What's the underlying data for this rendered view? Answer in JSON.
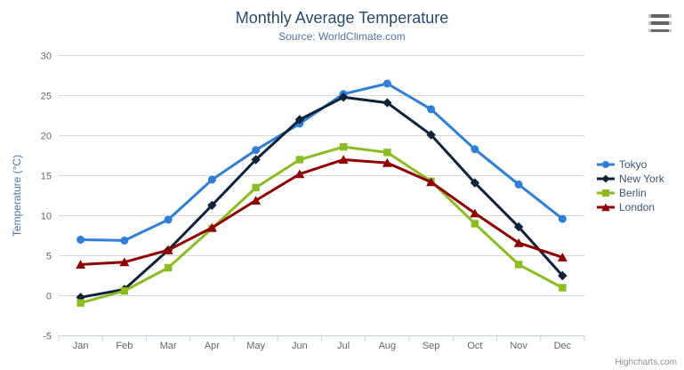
{
  "chart_data": {
    "type": "line",
    "title": "Monthly Average Temperature",
    "subtitle": "Source: WorldClimate.com",
    "xlabel": "",
    "ylabel": "Temperature (°C)",
    "categories": [
      "Jan",
      "Feb",
      "Mar",
      "Apr",
      "May",
      "Jun",
      "Jul",
      "Aug",
      "Sep",
      "Oct",
      "Nov",
      "Dec"
    ],
    "ylim": [
      -5,
      30
    ],
    "ytick_interval": 5,
    "yticks": [
      -5,
      0,
      5,
      10,
      15,
      20,
      25,
      30
    ],
    "grid": true,
    "legend_position": "right",
    "series": [
      {
        "name": "Tokyo",
        "color": "#2f7ed8",
        "marker": "circle",
        "values": [
          7.0,
          6.9,
          9.5,
          14.5,
          18.2,
          21.5,
          25.2,
          26.5,
          23.3,
          18.3,
          13.9,
          9.6
        ]
      },
      {
        "name": "New York",
        "color": "#0d233a",
        "marker": "diamond",
        "values": [
          -0.2,
          0.8,
          5.7,
          11.3,
          17.0,
          22.0,
          24.8,
          24.1,
          20.1,
          14.1,
          8.6,
          2.5
        ]
      },
      {
        "name": "Berlin",
        "color": "#8bbc21",
        "marker": "square",
        "values": [
          -0.9,
          0.6,
          3.5,
          8.4,
          13.5,
          17.0,
          18.6,
          17.9,
          14.3,
          9.0,
          3.9,
          1.0
        ]
      },
      {
        "name": "London",
        "color": "#910000",
        "marker": "triangle",
        "values": [
          3.9,
          4.2,
          5.7,
          8.5,
          11.9,
          15.2,
          17.0,
          16.6,
          14.2,
          10.3,
          6.6,
          4.8
        ]
      }
    ]
  },
  "credits": {
    "label": "Highcharts.com"
  },
  "icons": {
    "menu": "hamburger-menu-icon"
  },
  "colors": {
    "title": "#274b6d",
    "subtitle": "#4d759e",
    "axis_title": "#4d759e",
    "axis_labels": "#666666",
    "grid_line": "#d8d8d8",
    "axis_line": "#c0d0e0",
    "legend_text": "#3e576f",
    "credits": "#909090",
    "menu_icon": "#666666"
  }
}
